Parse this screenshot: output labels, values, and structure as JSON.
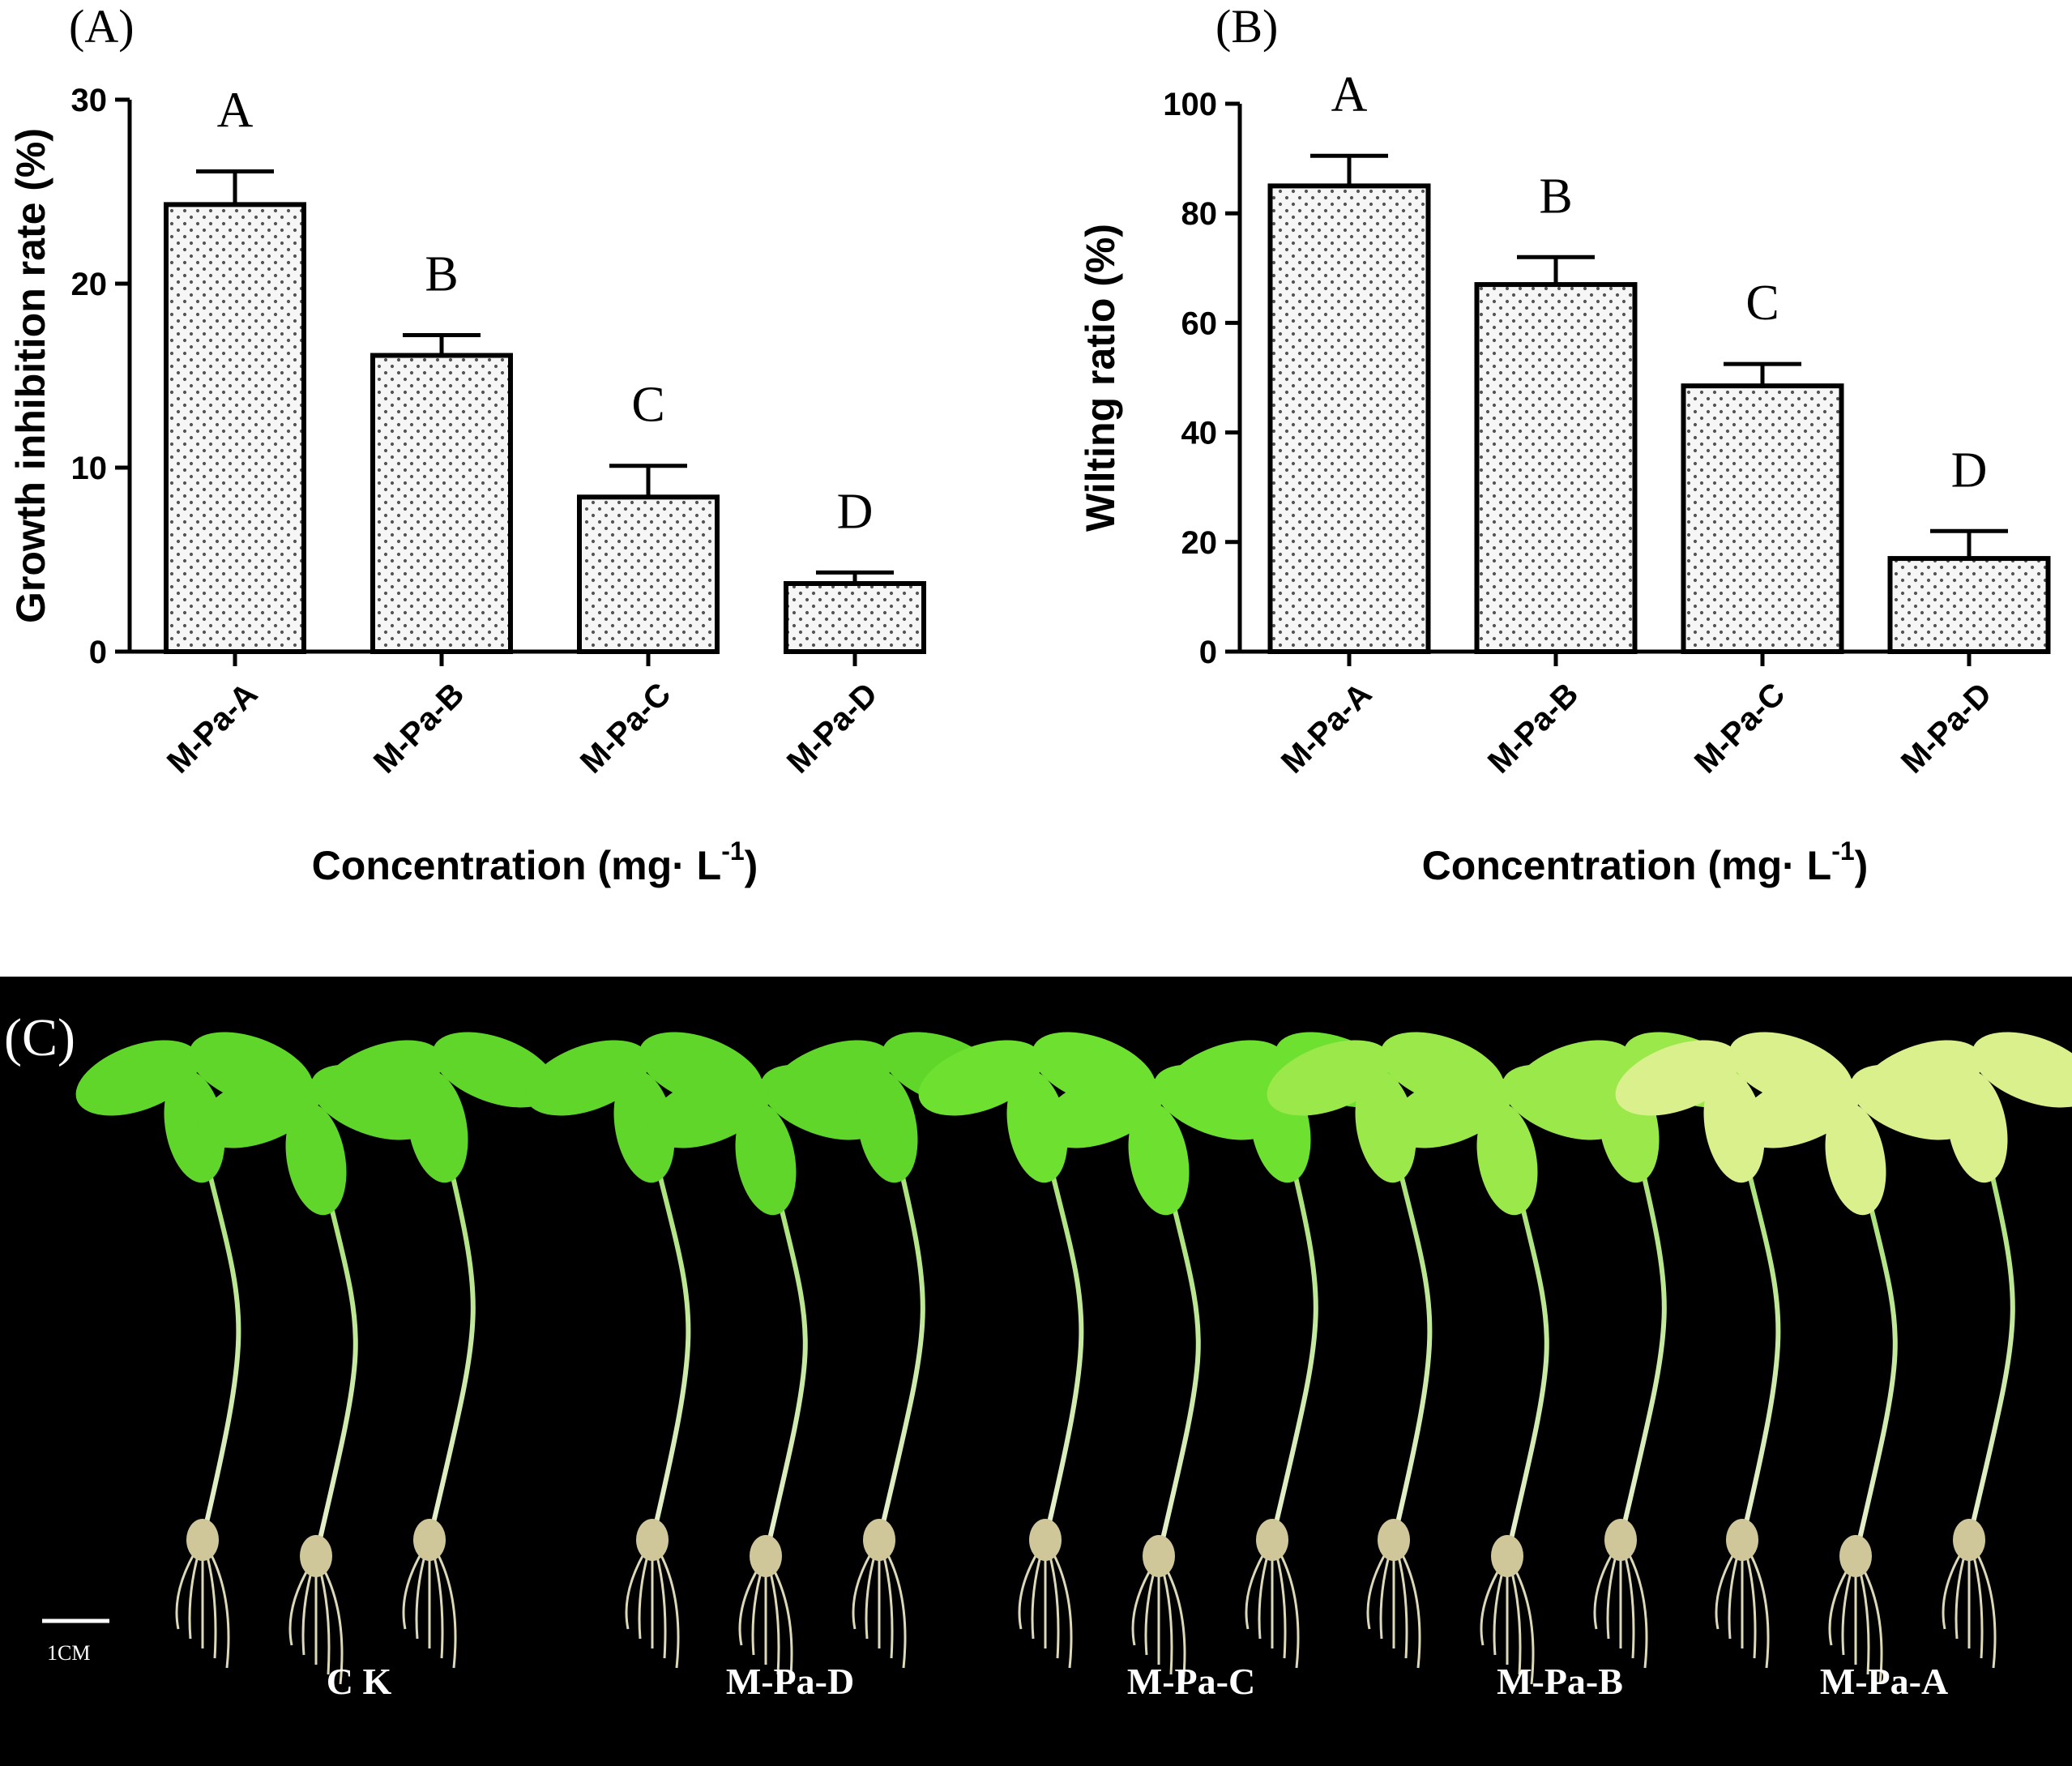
{
  "chart_data": [
    {
      "panel": "A",
      "panel_label": "(A)",
      "type": "bar",
      "categories": [
        "M-Pa-A",
        "M-Pa-B",
        "M-Pa-C",
        "M-Pa-D"
      ],
      "values": [
        24.3,
        16.1,
        8.4,
        3.7
      ],
      "errors": [
        1.8,
        1.1,
        1.7,
        0.6
      ],
      "significance": [
        "A",
        "B",
        "C",
        "D"
      ],
      "xlabel": "Concentration (mg· L",
      "xlabel_sup": "-1",
      "xlabel_end": ")",
      "ylabel": "Growth inhibition rate (%)",
      "ylim": [
        0,
        30
      ],
      "yticks": [
        "0",
        "10",
        "20",
        "30"
      ],
      "bar_pattern": "dotted",
      "grid": false,
      "legend": "none"
    },
    {
      "panel": "B",
      "panel_label": "(B)",
      "type": "bar",
      "categories": [
        "M-Pa-A",
        "M-Pa-B",
        "M-Pa-C",
        "M-Pa-D"
      ],
      "values": [
        85,
        67,
        48.5,
        17
      ],
      "errors": [
        5.5,
        5,
        4,
        5
      ],
      "significance": [
        "A",
        "B",
        "C",
        "D"
      ],
      "xlabel": "Concentration (mg· L",
      "xlabel_sup": "-1",
      "xlabel_end": ")",
      "ylabel": "Wilting ratio (%)",
      "ylim": [
        0,
        100
      ],
      "yticks": [
        "0",
        "20",
        "40",
        "60",
        "80",
        "100"
      ],
      "bar_pattern": "dotted",
      "grid": false,
      "legend": "none"
    }
  ],
  "photo": {
    "panel_label": "(C)",
    "scale_bar_label": "1CM",
    "background": "#000000",
    "leaf_green": "#5fd629",
    "group_labels": [
      "C K",
      "M-Pa-D",
      "M-Pa-C",
      "M-Pa-B",
      "M-Pa-A"
    ]
  },
  "colors": {
    "bar_fill": "#f6f6f6",
    "dots": "#555555",
    "ink": "#000000"
  }
}
